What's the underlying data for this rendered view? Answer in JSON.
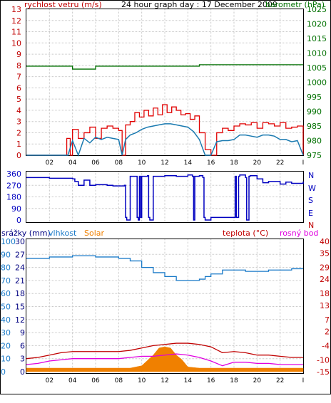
{
  "header": {
    "title": "24 hour graph day : 17 December 2009",
    "left_label": "rychlost vetru (m/s)",
    "right_label": "barometr (hPa)"
  },
  "direction_panel": {
    "right_labels": [
      "N",
      "W",
      "S",
      "E",
      "N"
    ]
  },
  "bottom_panel": {
    "label_rain": "srážky (mm)",
    "label_humidity": "vlhkost",
    "label_solar": "Solar",
    "label_temp": "teplota (°C)",
    "label_dew": "rosný bod"
  },
  "colors": {
    "wind_gust": "#e00000",
    "wind_avg": "#1a7ab0",
    "barometer": "#007000",
    "direction": "#0000c0",
    "humidity": "#1a7ac8",
    "temperature": "#c00000",
    "dew_point": "#e000e0",
    "solar": "#f08000"
  },
  "chart_data": [
    {
      "type": "line",
      "panel": "wind-pressure",
      "x_ticks": [
        "02",
        "04",
        "06",
        "08",
        "10",
        "12",
        "14",
        "16",
        "18",
        "20",
        "22"
      ],
      "y_left": {
        "label": "rychlost vetru (m/s)",
        "range": [
          0,
          13
        ],
        "ticks": [
          0,
          1,
          2,
          3,
          4,
          5,
          6,
          7,
          8,
          9,
          10,
          11,
          12,
          13
        ]
      },
      "y_right": {
        "label": "barometr (hPa)",
        "range": [
          975,
          1025
        ],
        "ticks": [
          975,
          980,
          985,
          990,
          995,
          1000,
          1005,
          1010,
          1015,
          1020,
          1025
        ]
      },
      "grid": true,
      "series": [
        {
          "name": "barometr (hPa)",
          "axis": "right",
          "x": [
            0,
            1,
            3,
            4,
            5.5,
            6,
            9,
            12,
            14.5,
            15,
            18,
            21,
            23,
            24
          ],
          "y": [
            1005.5,
            1005.5,
            1005.5,
            1004.5,
            1004.5,
            1005.5,
            1005.5,
            1005.5,
            1005.5,
            1006,
            1006,
            1006,
            1006,
            1006
          ]
        },
        {
          "name": "rychlost vetru (m/s)",
          "axis": "left",
          "x": [
            0,
            1,
            2,
            3,
            3.6,
            4,
            4.5,
            5,
            5.5,
            6,
            6.5,
            7,
            7.5,
            8,
            8.3,
            8.6,
            9,
            9.5,
            10,
            10.5,
            11,
            11.5,
            12,
            12.5,
            13,
            13.5,
            14,
            14.5,
            15,
            15.5,
            16,
            16.5,
            17,
            17.5,
            18,
            18.5,
            19,
            19.5,
            20,
            20.5,
            21,
            21.5,
            22,
            22.5,
            23,
            23.5,
            24
          ],
          "y": [
            0,
            0,
            0,
            0,
            0,
            1.3,
            0,
            1.5,
            1.1,
            1.6,
            1.4,
            1.6,
            1.5,
            1.4,
            0,
            1.4,
            1.8,
            2.0,
            2.3,
            2.5,
            2.6,
            2.7,
            2.8,
            2.8,
            2.7,
            2.6,
            2.5,
            2.1,
            1.4,
            0,
            0,
            1.2,
            1.3,
            1.3,
            1.4,
            1.8,
            1.8,
            1.7,
            1.6,
            1.8,
            1.8,
            1.7,
            1.4,
            1.4,
            1.2,
            1.3,
            0
          ]
        },
        {
          "name": "wind gust",
          "axis": "left",
          "x": [
            0,
            1,
            2,
            3,
            3.5,
            3.8,
            4,
            4.5,
            5,
            5.5,
            6,
            6.5,
            7,
            7.5,
            8,
            8.3,
            8.6,
            9,
            9.4,
            9.8,
            10.2,
            10.6,
            11,
            11.4,
            11.8,
            12.2,
            12.6,
            13,
            13.4,
            13.8,
            14.2,
            14.6,
            15,
            15.5,
            16,
            16.5,
            17,
            17.5,
            18,
            18.5,
            19,
            19.5,
            20,
            20.5,
            21,
            21.5,
            22,
            22.5,
            23,
            23.5,
            24
          ],
          "y": [
            0,
            0,
            0,
            0,
            1.5,
            0,
            2.3,
            1.5,
            2.0,
            2.5,
            1.5,
            2.4,
            2.6,
            2.4,
            2.2,
            0,
            2.7,
            3.0,
            3.8,
            3.4,
            4.0,
            3.5,
            4.2,
            3.6,
            4.5,
            3.8,
            4.3,
            4.0,
            3.6,
            3.7,
            3.2,
            3.5,
            2.0,
            0.5,
            0,
            2.0,
            2.4,
            2.2,
            2.6,
            2.8,
            2.7,
            2.9,
            2.4,
            2.9,
            2.8,
            2.6,
            2.9,
            2.4,
            2.5,
            2.6,
            0
          ]
        }
      ]
    },
    {
      "type": "line",
      "panel": "wind-direction",
      "x_ticks": [],
      "y": {
        "range": [
          0,
          360
        ],
        "ticks": [
          0,
          90,
          180,
          270,
          360
        ]
      },
      "series": [
        {
          "name": "direction",
          "axis": "left",
          "x": [
            0,
            1,
            2,
            3,
            4,
            4.2,
            4.5,
            5,
            5.5,
            6,
            7,
            7.5,
            8.5,
            8.6,
            8.7,
            9,
            9.5,
            9.6,
            9.7,
            9.8,
            9.9,
            10,
            10.5,
            10.6,
            10.7,
            11,
            12,
            13,
            14,
            14.4,
            14.5,
            14.6,
            15,
            15.3,
            15.4,
            15.5,
            16,
            17,
            18,
            18.1,
            18.2,
            18.4,
            18.5,
            19,
            19.1,
            19.3,
            19.4,
            20,
            20.5,
            21,
            22,
            22.5,
            23,
            24
          ],
          "y": [
            330,
            330,
            325,
            325,
            320,
            300,
            270,
            310,
            270,
            275,
            270,
            265,
            270,
            20,
            0,
            340,
            340,
            20,
            0,
            340,
            20,
            340,
            345,
            20,
            0,
            340,
            345,
            340,
            350,
            340,
            0,
            340,
            345,
            330,
            20,
            0,
            20,
            20,
            20,
            340,
            20,
            340,
            350,
            330,
            0,
            340,
            345,
            320,
            290,
            300,
            280,
            295,
            285,
            300
          ]
        }
      ]
    },
    {
      "type": "line",
      "panel": "temperature-humidity",
      "x_ticks": [
        "02",
        "04",
        "06",
        "08",
        "10",
        "12",
        "14",
        "16",
        "18",
        "20",
        "22"
      ],
      "y_left_rain": {
        "label": "srážky (mm)",
        "range": [
          0,
          30
        ],
        "ticks": [
          0,
          3,
          6,
          9,
          12,
          15,
          18,
          21,
          24,
          27,
          30
        ]
      },
      "y_left_humidity": {
        "label": "vlhkost",
        "range": [
          0,
          100
        ],
        "ticks": [
          0,
          10,
          20,
          30,
          40,
          50,
          60,
          70,
          80,
          90,
          100
        ]
      },
      "y_right_temp": {
        "label": "teplota (°C)",
        "range": [
          -15,
          40
        ],
        "ticks": [
          -15,
          -10,
          -4,
          2,
          7,
          13,
          18,
          24,
          29,
          35,
          40
        ]
      },
      "grid": true,
      "series": [
        {
          "name": "vlhkost",
          "axis": "humidity",
          "x": [
            0,
            2,
            4,
            6,
            8,
            9,
            10,
            11,
            12,
            13,
            14,
            15,
            15.5,
            16,
            17,
            18,
            19,
            20,
            21,
            22,
            23,
            24
          ],
          "y": [
            87,
            88,
            89,
            88,
            87,
            85,
            80,
            76,
            73,
            70,
            70,
            71,
            73,
            75,
            78,
            78,
            77,
            77,
            78,
            78,
            79,
            79
          ]
        },
        {
          "name": "teplota (°C)",
          "axis": "temp",
          "x": [
            0,
            1,
            2,
            3,
            4,
            5,
            6,
            7,
            8,
            9,
            10,
            11,
            12,
            13,
            14,
            15,
            16,
            17,
            18,
            19,
            20,
            21,
            22,
            23,
            24
          ],
          "y": [
            -9.5,
            -9,
            -8,
            -7,
            -6.5,
            -6.5,
            -6.5,
            -6.5,
            -6.5,
            -6,
            -5,
            -4,
            -3.5,
            -3,
            -3,
            -3.5,
            -4.5,
            -7,
            -6.5,
            -7,
            -8,
            -8,
            -8.5,
            -9,
            -9
          ]
        },
        {
          "name": "rosný bod",
          "axis": "temp",
          "x": [
            0,
            1,
            2,
            3,
            4,
            5,
            6,
            7,
            8,
            9,
            10,
            11,
            12,
            13,
            14,
            15,
            16,
            17,
            18,
            19,
            20,
            21,
            22,
            23,
            24
          ],
          "y": [
            -12,
            -11.5,
            -10.5,
            -10,
            -9.5,
            -9.5,
            -9.5,
            -9.5,
            -9.5,
            -9,
            -8.5,
            -8.5,
            -8,
            -7.5,
            -8,
            -9,
            -10.5,
            -12.5,
            -11,
            -11,
            -11.5,
            -11.5,
            -12,
            -12,
            -12
          ]
        },
        {
          "name": "Solar",
          "axis": "temp",
          "kind": "area",
          "x": [
            0,
            1,
            2,
            3,
            4,
            5,
            6,
            7,
            8,
            9,
            10,
            11,
            11.5,
            12,
            12.5,
            13,
            13.5,
            14,
            15,
            16,
            17,
            18,
            19,
            20,
            21,
            22,
            23,
            24
          ],
          "y": [
            -13.5,
            -13.5,
            -13.5,
            -13.5,
            -13.5,
            -13.5,
            -13.5,
            -13.5,
            -13.5,
            -13.5,
            -12.5,
            -8,
            -5,
            -4.5,
            -5,
            -8,
            -10,
            -13,
            -13.5,
            -13.5,
            -13.5,
            -13.5,
            -13.5,
            -13.5,
            -13.5,
            -13.5,
            -13.5,
            -13.5
          ]
        }
      ]
    }
  ]
}
